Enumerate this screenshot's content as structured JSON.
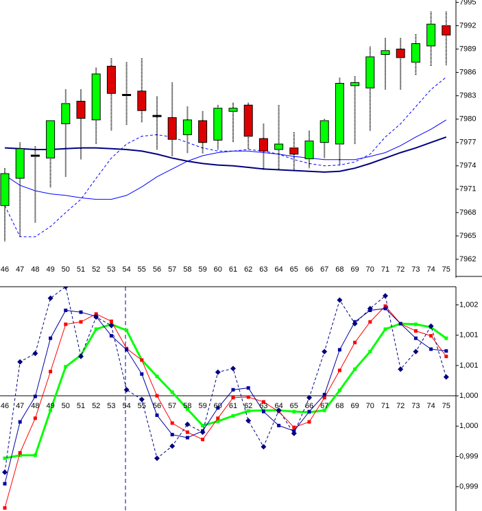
{
  "chart_data": [
    {
      "type": "candlestick",
      "categories": [
        "46",
        "47",
        "48",
        "49",
        "50",
        "51",
        "52",
        "53",
        "54",
        "55",
        "56",
        "57",
        "58",
        "59",
        "60",
        "61",
        "62",
        "63",
        "64",
        "65",
        "66",
        "67",
        "68",
        "69",
        "70",
        "71",
        "72",
        "73",
        "74",
        "75"
      ],
      "open": [
        7968.9,
        7972.4,
        7975.3,
        7975.0,
        7979.4,
        7982.3,
        7979.9,
        7986.8,
        7983.1,
        7983.6,
        7980.4,
        7980.2,
        7978.0,
        7979.8,
        7977.3,
        7981.0,
        7981.8,
        7977.5,
        7976.1,
        7976.3,
        7974.9,
        7977.0,
        7976.8,
        7984.3,
        7984.0,
        7988.3,
        7989.0,
        7987.3,
        7989.4,
        7992.0
      ],
      "high": [
        7973.7,
        7977.0,
        7976.5,
        7979.8,
        7983.8,
        7983.8,
        7986.6,
        7987.8,
        7987.3,
        7987.8,
        7982.9,
        7984.7,
        7981.6,
        7981.0,
        7981.8,
        7982.1,
        7982.1,
        7979.4,
        7981.8,
        7978.3,
        7978.5,
        7980.0,
        7985.3,
        7985.5,
        7989.3,
        7990.4,
        7990.4,
        7990.9,
        7993.8,
        7993.8
      ],
      "low": [
        7964.3,
        7964.9,
        7966.7,
        7971.2,
        7972.6,
        7974.8,
        7976.8,
        7978.5,
        7979.2,
        7979.6,
        7976.1,
        7975.2,
        7975.6,
        7975.6,
        7976.1,
        7977.0,
        7976.1,
        7973.5,
        7973.4,
        7973.4,
        7973.7,
        7975.0,
        7974.1,
        7976.8,
        7978.5,
        7983.8,
        7983.8,
        7985.6,
        7986.8,
        7986.9
      ],
      "close": [
        7973.0,
        7976.2,
        7975.3,
        7979.8,
        7982.0,
        7980.1,
        7985.8,
        7983.3,
        7983.1,
        7981.1,
        7980.4,
        7977.4,
        7979.9,
        7977.0,
        7981.4,
        7981.4,
        7977.8,
        7975.9,
        7976.8,
        7975.5,
        7977.2,
        7979.8,
        7984.6,
        7984.7,
        7988.0,
        7988.8,
        7987.9,
        7989.7,
        7992.2,
        7990.8
      ],
      "up_color": "#00ff00",
      "down_color": "#dd0000",
      "doji_color": "#000000",
      "series": [
        {
          "color": "#0000ff",
          "dash": false,
          "width": 1,
          "values": [
            7972.8,
            7971.5,
            7970.8,
            7970.4,
            7970.2,
            7969.9,
            7969.7,
            7969.7,
            7970.2,
            7971.3,
            7972.6,
            7973.6,
            7974.6,
            7975.3,
            7975.7,
            7975.9,
            7975.9,
            7975.7,
            7975.5,
            7975.2,
            7975.0,
            7974.8,
            7974.8,
            7974.8,
            7975.2,
            7975.7,
            7976.6,
            7977.7,
            7978.7,
            7979.9
          ]
        },
        {
          "color": "#0000ff",
          "dash": true,
          "width": 1,
          "values": [
            7968.9,
            7964.9,
            7964.9,
            7966.2,
            7968.0,
            7969.7,
            7972.4,
            7975.0,
            7976.8,
            7977.8,
            7978.0,
            7977.7,
            7977.0,
            7976.3,
            7975.9,
            7975.9,
            7976.1,
            7975.9,
            7975.5,
            7974.8,
            7974.3,
            7974.0,
            7974.1,
            7974.5,
            7975.5,
            7977.7,
            7979.4,
            7981.6,
            7983.8,
            7985.4
          ]
        },
        {
          "color": "#000080",
          "dash": false,
          "width": 2,
          "values": [
            7976.3,
            7976.2,
            7976.1,
            7976.1,
            7976.2,
            7976.3,
            7976.3,
            7976.2,
            7976.1,
            7975.9,
            7975.5,
            7975.0,
            7974.6,
            7974.3,
            7974.1,
            7974.0,
            7973.8,
            7973.6,
            7973.5,
            7973.4,
            7973.3,
            7973.2,
            7973.3,
            7973.7,
            7974.3,
            7975.0,
            7975.7,
            7976.3,
            7977.0,
            7977.7
          ]
        }
      ],
      "ylim": [
        7962,
        7995.3
      ],
      "yticks": [
        7962,
        7965,
        7968,
        7971,
        7974,
        7977,
        7980,
        7983,
        7986,
        7989,
        7992,
        7995
      ]
    },
    {
      "type": "line",
      "categories": [
        "46",
        "47",
        "48",
        "49",
        "50",
        "51",
        "52",
        "53",
        "54",
        "55",
        "56",
        "57",
        "58",
        "59",
        "60",
        "61",
        "62",
        "63",
        "64",
        "65",
        "66",
        "67",
        "68",
        "69",
        "70",
        "71",
        "72",
        "73",
        "74",
        "75"
      ],
      "series": [
        {
          "color": "#00ff00",
          "dash": false,
          "width": 3,
          "marker": "square",
          "values": [
            0.99897,
            0.99902,
            0.99902,
            0.99976,
            1.00048,
            1.00067,
            1.0011,
            1.00118,
            1.00108,
            1.00059,
            1.00032,
            1.00006,
            0.99978,
            0.99951,
            0.99958,
            0.99967,
            0.99975,
            0.99976,
            0.99976,
            0.99974,
            0.99973,
            0.99976,
            1.00009,
            1.00044,
            1.00073,
            1.0011,
            1.00119,
            1.00118,
            1.00113,
            1.00095
          ]
        },
        {
          "color": "#ff0000",
          "dash": false,
          "width": 1,
          "marker": "square",
          "values": [
            0.99815,
            0.99906,
            0.99963,
            1.0004,
            1.00118,
            1.00122,
            1.00135,
            1.00123,
            1.00078,
            1.00059,
            1.0,
            0.99955,
            0.9994,
            0.99928,
            0.99963,
            0.99997,
            0.99998,
            0.9999,
            0.99974,
            0.99948,
            0.99957,
            0.99997,
            1.00042,
            1.00088,
            1.00122,
            1.00148,
            1.00119,
            1.00107,
            1.00099,
            1.00065
          ]
        },
        {
          "color": "#0000a0",
          "dash": false,
          "width": 1,
          "marker": "square",
          "values": [
            0.99855,
            0.99957,
            0.99999,
            1.00095,
            1.00141,
            1.00138,
            1.00131,
            1.00099,
            1.00076,
            1.00036,
            0.99968,
            0.99936,
            0.99931,
            0.99942,
            0.9998,
            1.0001,
            1.00013,
            0.99974,
            0.99951,
            0.99942,
            0.99974,
            1.00002,
            1.00076,
            1.00122,
            1.00141,
            1.00144,
            1.00119,
            1.00095,
            1.00077,
            1.00074
          ]
        },
        {
          "color": "#000080",
          "dash": true,
          "width": 1,
          "marker": "diamond",
          "values": [
            0.99874,
            1.00056,
            1.0007,
            1.00161,
            1.0018,
            1.00065,
            1.0013,
            1.00116,
            1.0001,
            0.99994,
            0.99897,
            0.99917,
            0.99953,
            0.9994,
            1.00039,
            1.00045,
            0.99959,
            0.99916,
            0.99976,
            0.99938,
            0.99997,
            1.00073,
            1.00158,
            1.00119,
            1.00144,
            1.00165,
            1.00044,
            1.00073,
            1.00115,
            1.00031
          ]
        }
      ],
      "ylim": [
        0.9981,
        1.0018
      ],
      "yticks": [
        {
          "value": 1.0015,
          "label": "1,002"
        },
        {
          "value": 1.001,
          "label": "1,001"
        },
        {
          "value": 1.0005,
          "label": "1,001"
        },
        {
          "value": 1.0,
          "label": "1,000"
        },
        {
          "value": 0.9995,
          "label": "1,000"
        },
        {
          "value": 0.999,
          "label": "0,999"
        },
        {
          "value": 0.9985,
          "label": "0,999"
        }
      ]
    }
  ]
}
